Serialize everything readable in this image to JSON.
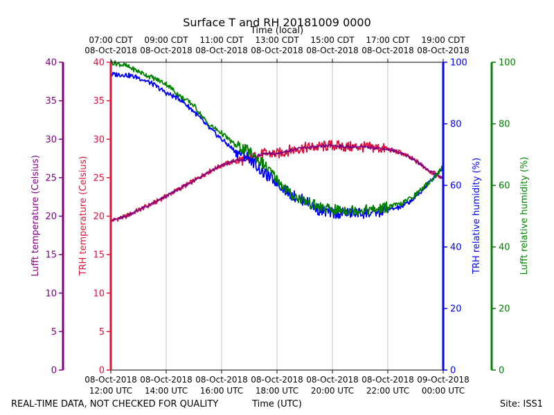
{
  "chart_data": {
    "type": "line",
    "title": "Surface T and RH 20181009 0000",
    "top_axis_title": "Time (local)",
    "xlabel": "Time (UTC)",
    "footer_left": "REAL-TIME DATA, NOT CHECKED FOR QUALITY",
    "footer_right": "Site: ISS1",
    "x_range_hours_utc": [
      12,
      24
    ],
    "x_ticks_utc": [
      {
        "hour": 12,
        "line1": "08-Oct-2018",
        "line2": "12:00 UTC"
      },
      {
        "hour": 14,
        "line1": "08-Oct-2018",
        "line2": "14:00 UTC"
      },
      {
        "hour": 16,
        "line1": "08-Oct-2018",
        "line2": "16:00 UTC"
      },
      {
        "hour": 18,
        "line1": "08-Oct-2018",
        "line2": "18:00 UTC"
      },
      {
        "hour": 20,
        "line1": "08-Oct-2018",
        "line2": "20:00 UTC"
      },
      {
        "hour": 22,
        "line1": "08-Oct-2018",
        "line2": "22:00 UTC"
      },
      {
        "hour": 24,
        "line1": "09-Oct-2018",
        "line2": "00:00 UTC"
      }
    ],
    "x_ticks_local": [
      {
        "hour": 12,
        "line1": "07:00 CDT",
        "line2": "08-Oct-2018"
      },
      {
        "hour": 14,
        "line1": "09:00 CDT",
        "line2": "08-Oct-2018"
      },
      {
        "hour": 16,
        "line1": "11:00 CDT",
        "line2": "08-Oct-2018"
      },
      {
        "hour": 18,
        "line1": "13:00 CDT",
        "line2": "08-Oct-2018"
      },
      {
        "hour": 20,
        "line1": "15:00 CDT",
        "line2": "08-Oct-2018"
      },
      {
        "hour": 22,
        "line1": "17:00 CDT",
        "line2": "08-Oct-2018"
      },
      {
        "hour": 24,
        "line1": "19:00 CDT",
        "line2": "08-Oct-2018"
      }
    ],
    "axes": {
      "lufft_temp": {
        "label": "Lufft temperature (Celsius)",
        "range": [
          0,
          40
        ],
        "ticks": [
          0,
          5,
          10,
          15,
          20,
          25,
          30,
          35,
          40
        ],
        "color": "#800080"
      },
      "trh_temp": {
        "label": "TRH temperature (Celsius)",
        "range": [
          0,
          40
        ],
        "ticks": [
          0,
          5,
          10,
          15,
          20,
          25,
          30,
          35,
          40
        ],
        "color": "#dc143c"
      },
      "trh_rh": {
        "label": "TRH relative humidity (%)",
        "range": [
          0,
          100
        ],
        "ticks": [
          0,
          20,
          40,
          60,
          80,
          100
        ],
        "color": "#0000ff"
      },
      "lufft_rh": {
        "label": "Lufft relative humidity (%)",
        "range": [
          0,
          100
        ],
        "ticks": [
          0,
          20,
          40,
          60,
          80,
          100
        ],
        "color": "#008000"
      }
    },
    "grid": "vertical",
    "series": [
      {
        "name": "TRH temperature",
        "axis": "trh_temp",
        "color": "#dc143c",
        "x": [
          12.0,
          12.5,
          13.0,
          13.5,
          14.0,
          14.5,
          15.0,
          15.5,
          16.0,
          16.5,
          17.0,
          17.5,
          18.0,
          18.5,
          19.0,
          19.5,
          20.0,
          20.5,
          21.0,
          21.5,
          22.0,
          22.5,
          23.0,
          23.5,
          24.0
        ],
        "values": [
          19.4,
          19.9,
          20.8,
          21.6,
          22.6,
          23.6,
          24.6,
          25.7,
          26.6,
          27.2,
          27.4,
          28.1,
          28.1,
          28.6,
          28.9,
          29.0,
          29.2,
          29.0,
          29.0,
          28.9,
          28.7,
          28.2,
          27.2,
          25.9,
          24.9
        ]
      },
      {
        "name": "Lufft temperature",
        "axis": "lufft_temp",
        "color": "#800080",
        "x": [
          12.0,
          12.5,
          13.0,
          13.5,
          14.0,
          14.5,
          15.0,
          15.5,
          16.0,
          16.5,
          17.0,
          17.5,
          18.0,
          18.5,
          19.0,
          19.5,
          20.0,
          20.5,
          21.0,
          21.5,
          22.0,
          22.5,
          23.0,
          23.5,
          24.0
        ],
        "values": [
          19.4,
          19.9,
          20.8,
          21.6,
          22.6,
          23.6,
          24.6,
          25.7,
          26.6,
          27.2,
          27.4,
          28.1,
          28.1,
          28.6,
          28.9,
          29.0,
          29.2,
          29.0,
          29.0,
          28.9,
          28.7,
          28.2,
          27.2,
          25.9,
          24.9
        ]
      },
      {
        "name": "TRH relative humidity",
        "axis": "trh_rh",
        "color": "#0000ff",
        "x": [
          12.0,
          12.5,
          13.0,
          13.5,
          14.0,
          14.5,
          15.0,
          15.5,
          16.0,
          16.5,
          17.0,
          17.5,
          18.0,
          18.5,
          19.0,
          19.5,
          20.0,
          20.5,
          21.0,
          21.5,
          22.0,
          22.5,
          23.0,
          23.5,
          24.0
        ],
        "values": [
          96,
          96,
          95,
          93,
          90,
          88,
          84,
          79,
          75,
          71,
          69,
          64,
          61,
          57,
          55,
          52,
          51,
          51,
          51,
          51,
          52,
          53,
          56,
          61,
          66
        ]
      },
      {
        "name": "Lufft relative humidity",
        "axis": "lufft_rh",
        "color": "#008000",
        "x": [
          12.0,
          12.5,
          13.0,
          13.5,
          14.0,
          14.5,
          15.0,
          15.5,
          16.0,
          16.5,
          17.0,
          17.5,
          18.0,
          18.5,
          19.0,
          19.5,
          20.0,
          20.5,
          21.0,
          21.5,
          22.0,
          22.5,
          23.0,
          23.5,
          24.0
        ],
        "values": [
          100,
          99,
          97,
          95,
          93,
          89,
          86,
          80,
          77,
          73,
          71,
          67,
          62,
          57,
          55,
          53,
          52,
          52,
          52,
          52,
          53,
          54,
          57,
          61,
          66
        ]
      }
    ]
  }
}
